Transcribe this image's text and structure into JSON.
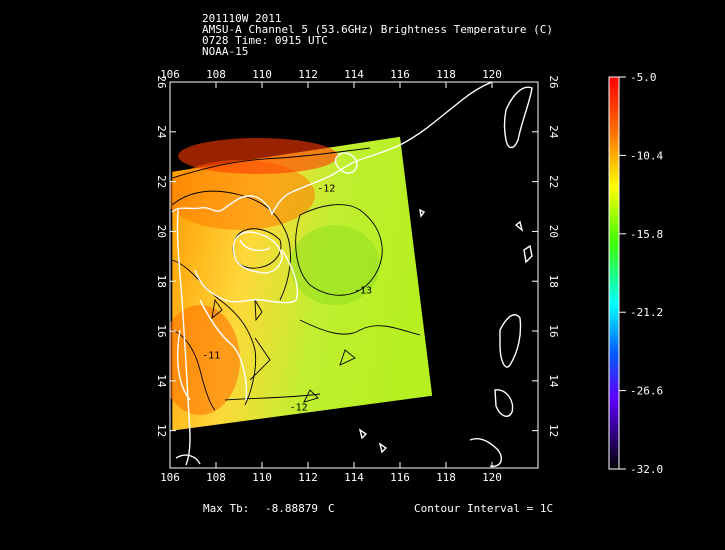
{
  "header": {
    "line1": "201110W 2011",
    "line2": "AMSU-A Channel 5 (53.6GHz) Brightness Temperature (C)",
    "line3": "0728 Time: 0915 UTC",
    "line4": "NOAA-15"
  },
  "map": {
    "lon_ticks": [
      "106",
      "108",
      "110",
      "112",
      "114",
      "116",
      "118",
      "120"
    ],
    "lat_ticks": [
      "12",
      "14",
      "16",
      "18",
      "20",
      "22",
      "24",
      "26"
    ],
    "lon_range": [
      106,
      122
    ],
    "lat_range": [
      10.5,
      26
    ],
    "swath_corners_lonlat": [
      [
        106.1,
        22.4
      ],
      [
        116.0,
        23.8
      ],
      [
        117.4,
        13.4
      ],
      [
        106.1,
        12.0
      ]
    ],
    "contour_labels": [
      {
        "text": "-12",
        "lon": 112.4,
        "lat": 21.6
      },
      {
        "text": "-13",
        "lon": 114.0,
        "lat": 17.5
      },
      {
        "text": "-11",
        "lon": 107.4,
        "lat": 14.9
      },
      {
        "text": "-12",
        "lon": 111.2,
        "lat": 12.8
      }
    ]
  },
  "colorbar": {
    "labels": [
      "-5.0",
      "-10.4",
      "-15.8",
      "-21.2",
      "-26.6",
      "-32.0"
    ],
    "min": -32.0,
    "max": -5.0,
    "colors_top_to_bottom": [
      "#ff0000",
      "#ff8000",
      "#ffff00",
      "#00ff00",
      "#00ffff",
      "#0000ff",
      "#8000ff",
      "#000000"
    ]
  },
  "footer": {
    "max_label": "Max Tb:",
    "max_value": "-8.88879",
    "max_unit": "C",
    "contour_text": "Contour Interval = 1C"
  }
}
